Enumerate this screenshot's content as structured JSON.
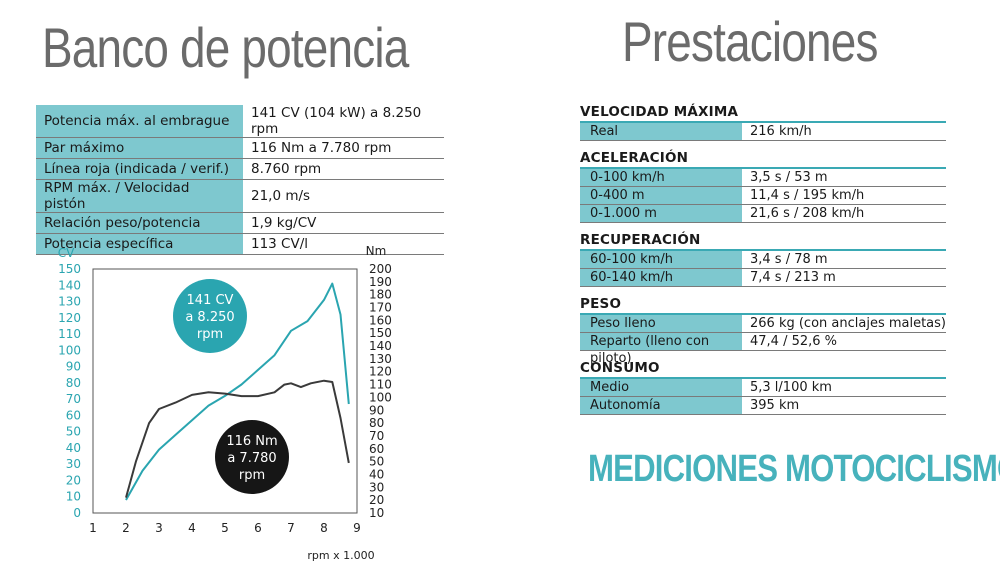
{
  "left_title": "Banco de potencia",
  "right_title": "Prestaciones",
  "specs": [
    {
      "label": "Potencia máx. al embrague",
      "value": "141 CV (104 kW) a 8.250 rpm"
    },
    {
      "label": "Par máximo",
      "value": "116 Nm a 7.780 rpm"
    },
    {
      "label": "Línea roja (indicada / verif.)",
      "value": "8.760 rpm"
    },
    {
      "label": "RPM máx. / Velocidad pistón",
      "value": "21,0 m/s"
    },
    {
      "label": "Relación peso/potencia",
      "value": "1,9 kg/CV"
    },
    {
      "label": "Potencia específica",
      "value": "113 CV/l"
    }
  ],
  "sections": [
    {
      "title": "VELOCIDAD MÁXIMA",
      "rows": [
        {
          "label": "Real",
          "value": "216 km/h"
        }
      ]
    },
    {
      "title": "ACELERACIÓN",
      "rows": [
        {
          "label": "0-100 km/h",
          "value": "3,5 s / 53 m"
        },
        {
          "label": "0-400 m",
          "value": "11,4 s / 195 km/h"
        },
        {
          "label": "0-1.000 m",
          "value": "21,6 s / 208 km/h"
        }
      ]
    },
    {
      "title": "RECUPERACIÓN",
      "rows": [
        {
          "label": "60-100 km/h",
          "value": "3,4 s / 78 m"
        },
        {
          "label": "60-140 km/h",
          "value": "7,4 s / 213 m"
        }
      ]
    },
    {
      "title": "PESO",
      "rows": [
        {
          "label": "Peso lleno",
          "value": "266 kg (con anclajes maletas)"
        },
        {
          "label": "Reparto (lleno con piloto)",
          "value": "47,4 / 52,6 %"
        }
      ]
    },
    {
      "title": "CONSUMO",
      "rows": [
        {
          "label": "Medio",
          "value": "5,3 l/100 km"
        },
        {
          "label": "Autonomía",
          "value": "395 km"
        }
      ]
    }
  ],
  "brand": "MEDICIONES MOTOCICLISMO",
  "chart_data": {
    "type": "line",
    "xlabel": "rpm x 1.000",
    "x_ticks": [
      "1",
      "2",
      "3",
      "4",
      "5",
      "6",
      "7",
      "8",
      "9"
    ],
    "xlim": [
      1,
      9
    ],
    "left_axis": {
      "unit": "CV",
      "ylim": [
        0,
        150
      ],
      "ticks": [
        "0",
        "10",
        "20",
        "30",
        "40",
        "50",
        "60",
        "70",
        "80",
        "90",
        "100",
        "110",
        "120",
        "130",
        "140",
        "150"
      ]
    },
    "right_axis": {
      "unit": "Nm",
      "ylim": [
        10,
        200
      ],
      "ticks": [
        "10",
        "20",
        "30",
        "40",
        "50",
        "60",
        "70",
        "80",
        "90",
        "100",
        "110",
        "120",
        "130",
        "140",
        "150",
        "160",
        "170",
        "180",
        "190",
        "200"
      ]
    },
    "series": [
      {
        "axis": "left",
        "color": "#2aa5b0",
        "x": [
          2.0,
          2.5,
          3.0,
          3.5,
          4.0,
          4.5,
          5.0,
          5.5,
          6.0,
          6.5,
          7.0,
          7.5,
          8.0,
          8.25,
          8.5,
          8.75
        ],
        "y": [
          8,
          26,
          39,
          48,
          57,
          66,
          72,
          79,
          88,
          97,
          112,
          118,
          131,
          141,
          122,
          67
        ]
      },
      {
        "axis": "right",
        "color": "#3a3a3a",
        "x": [
          2.0,
          2.3,
          2.7,
          3.0,
          3.5,
          4.0,
          4.5,
          5.0,
          5.5,
          6.0,
          6.5,
          6.8,
          7.0,
          7.3,
          7.6,
          8.0,
          8.25,
          8.5,
          8.75
        ],
        "y": [
          22,
          50,
          80,
          91,
          96,
          102,
          104,
          103,
          101,
          101,
          104,
          110,
          111,
          108,
          111,
          113,
          112,
          84,
          49
        ]
      }
    ],
    "annotations": [
      {
        "text": [
          "141 CV",
          "a 8.250",
          "rpm"
        ],
        "color": "#2aa5b0"
      },
      {
        "text": [
          "116 Nm",
          "a 7.780",
          "rpm"
        ],
        "color": "#161616"
      }
    ]
  }
}
